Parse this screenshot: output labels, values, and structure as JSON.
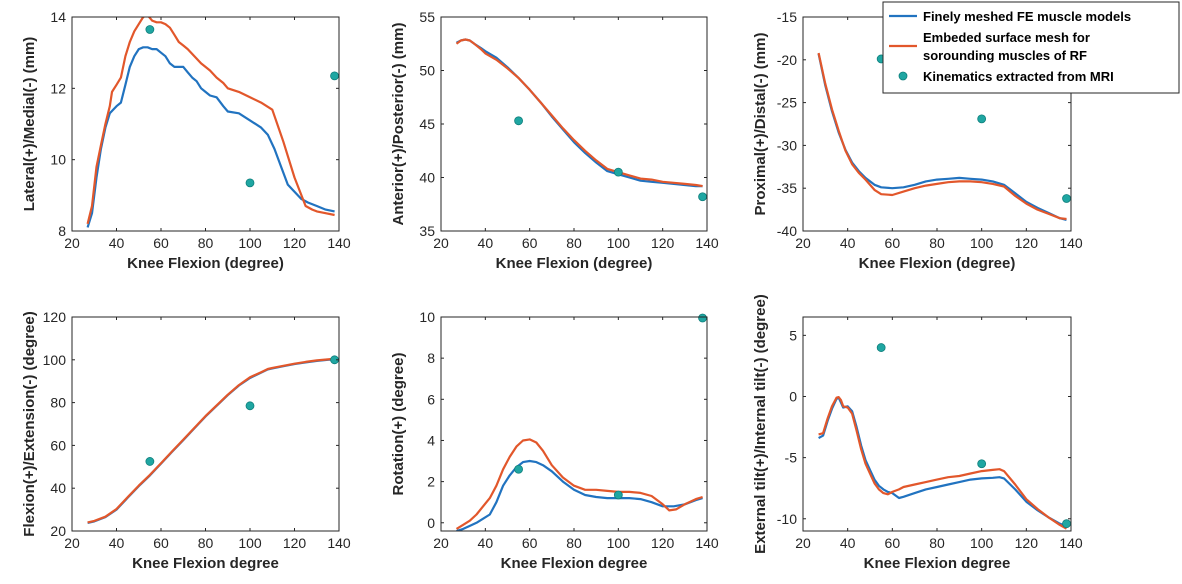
{
  "colors": {
    "fe": "#2173c0",
    "surf": "#e2572b",
    "mri": "#1fa6a2",
    "axis": "#262626"
  },
  "legend": {
    "entries": [
      {
        "key": "fe",
        "type": "line",
        "lines": [
          "Finely meshed FE muscle models"
        ]
      },
      {
        "key": "surf",
        "type": "line",
        "lines": [
          "Embeded surface mesh for",
          "sorounding muscles of RF"
        ]
      },
      {
        "key": "mri",
        "type": "marker",
        "lines": [
          "Kinematics extracted from MRI"
        ]
      }
    ]
  },
  "chart_data": [
    {
      "type": "line",
      "xlabel": "Knee Flexion (degree)",
      "ylabel": "Lateral(+)/Medial(-) (mm)",
      "xlim": [
        20,
        140
      ],
      "ylim": [
        8,
        14
      ],
      "xticks": [
        20,
        40,
        60,
        80,
        100,
        120,
        140
      ],
      "yticks": [
        8,
        10,
        12,
        14
      ],
      "series": [
        {
          "key": "fe",
          "name": "Finely meshed FE muscle models",
          "x": [
            27,
            29,
            31,
            33,
            35,
            37,
            40,
            42,
            44,
            46,
            48,
            50,
            52,
            54,
            56,
            58,
            60,
            62,
            64,
            66,
            68,
            70,
            72,
            74,
            76,
            78,
            80,
            82,
            85,
            88,
            90,
            95,
            100,
            105,
            108,
            111,
            114,
            117,
            120,
            123,
            126,
            130,
            134,
            138
          ],
          "y": [
            8.1,
            8.5,
            9.5,
            10.3,
            10.9,
            11.3,
            11.5,
            11.6,
            12.1,
            12.6,
            12.9,
            13.1,
            13.15,
            13.15,
            13.1,
            13.1,
            13.0,
            12.9,
            12.7,
            12.6,
            12.6,
            12.6,
            12.45,
            12.3,
            12.2,
            12.0,
            11.9,
            11.8,
            11.75,
            11.5,
            11.35,
            11.3,
            11.1,
            10.9,
            10.7,
            10.3,
            9.8,
            9.3,
            9.1,
            8.9,
            8.8,
            8.7,
            8.6,
            8.55
          ]
        },
        {
          "key": "surf",
          "name": "Embeded surface mesh for sorounding muscles of RF",
          "x": [
            27,
            29,
            31,
            33,
            35,
            37,
            38,
            40,
            42,
            44,
            46,
            48,
            50,
            52,
            54,
            56,
            58,
            60,
            62,
            64,
            66,
            68,
            70,
            72,
            75,
            78,
            80,
            82,
            85,
            88,
            90,
            95,
            100,
            105,
            110,
            115,
            120,
            125,
            128,
            130,
            134,
            138
          ],
          "y": [
            8.2,
            8.7,
            9.8,
            10.4,
            11.0,
            11.5,
            11.9,
            12.1,
            12.3,
            12.9,
            13.3,
            13.6,
            13.8,
            14.0,
            14.05,
            13.9,
            13.85,
            13.85,
            13.8,
            13.7,
            13.5,
            13.3,
            13.2,
            13.1,
            12.9,
            12.7,
            12.6,
            12.5,
            12.3,
            12.15,
            12.0,
            11.9,
            11.75,
            11.6,
            11.4,
            10.5,
            9.5,
            8.7,
            8.6,
            8.55,
            8.5,
            8.45
          ]
        }
      ],
      "points": {
        "key": "mri",
        "name": "Kinematics extracted from MRI",
        "x": [
          55,
          100,
          138
        ],
        "y": [
          13.65,
          9.35,
          12.35
        ]
      }
    },
    {
      "type": "line",
      "xlabel": "Knee Flexion (degree)",
      "ylabel": "Anterior(+)/Posterior(-) (mm)",
      "xlim": [
        20,
        140
      ],
      "ylim": [
        35,
        55
      ],
      "xticks": [
        20,
        40,
        60,
        80,
        100,
        120,
        140
      ],
      "yticks": [
        35,
        40,
        45,
        50,
        55
      ],
      "series": [
        {
          "key": "fe",
          "name": "Finely meshed FE muscle models",
          "x": [
            27,
            29,
            31,
            33,
            35,
            38,
            40,
            45,
            50,
            55,
            60,
            65,
            70,
            75,
            80,
            85,
            90,
            95,
            100,
            105,
            110,
            115,
            120,
            125,
            130,
            135,
            138
          ],
          "y": [
            52.6,
            52.8,
            52.9,
            52.8,
            52.5,
            52.1,
            51.8,
            51.2,
            50.3,
            49.3,
            48.2,
            47.0,
            45.7,
            44.5,
            43.3,
            42.3,
            41.4,
            40.6,
            40.3,
            40.0,
            39.7,
            39.6,
            39.5,
            39.4,
            39.3,
            39.2,
            39.2
          ]
        },
        {
          "key": "surf",
          "name": "Embeded surface mesh for sorounding muscles of RF",
          "x": [
            27,
            29,
            31,
            33,
            35,
            38,
            40,
            45,
            50,
            55,
            60,
            65,
            70,
            75,
            80,
            85,
            90,
            95,
            100,
            105,
            110,
            115,
            120,
            125,
            130,
            135,
            138
          ],
          "y": [
            52.5,
            52.8,
            52.9,
            52.8,
            52.5,
            52.0,
            51.6,
            51.0,
            50.2,
            49.3,
            48.2,
            47.0,
            45.8,
            44.6,
            43.5,
            42.5,
            41.6,
            40.8,
            40.5,
            40.2,
            39.9,
            39.8,
            39.6,
            39.5,
            39.4,
            39.3,
            39.2
          ]
        }
      ],
      "points": {
        "key": "mri",
        "name": "Kinematics extracted from MRI",
        "x": [
          55,
          100,
          138
        ],
        "y": [
          45.3,
          40.5,
          38.2
        ]
      }
    },
    {
      "type": "line",
      "xlabel": "Knee Flexion (degree)",
      "ylabel": "Proximal(+)/Distal(-) (mm)",
      "xlim": [
        20,
        140
      ],
      "ylim": [
        -40,
        -15
      ],
      "xticks": [
        20,
        40,
        60,
        80,
        100,
        120,
        140
      ],
      "yticks": [
        -40,
        -35,
        -30,
        -25,
        -20,
        -15
      ],
      "series": [
        {
          "key": "fe",
          "name": "Finely meshed FE muscle models",
          "x": [
            27,
            30,
            33,
            36,
            39,
            42,
            45,
            48,
            52,
            55,
            60,
            65,
            70,
            75,
            80,
            85,
            90,
            95,
            100,
            105,
            110,
            115,
            120,
            125,
            130,
            135,
            138
          ],
          "y": [
            -19.3,
            -23.0,
            -26.0,
            -28.5,
            -30.5,
            -32.0,
            -33.0,
            -33.8,
            -34.6,
            -34.9,
            -35.0,
            -34.9,
            -34.6,
            -34.2,
            -34.0,
            -33.9,
            -33.8,
            -33.9,
            -34.0,
            -34.2,
            -34.6,
            -35.6,
            -36.6,
            -37.3,
            -37.9,
            -38.5,
            -38.7
          ]
        },
        {
          "key": "surf",
          "name": "Embeded surface mesh for sorounding muscles of RF",
          "x": [
            27,
            30,
            33,
            36,
            39,
            42,
            45,
            48,
            52,
            55,
            60,
            65,
            70,
            75,
            80,
            85,
            90,
            95,
            100,
            105,
            110,
            115,
            120,
            125,
            130,
            135,
            138
          ],
          "y": [
            -19.2,
            -22.8,
            -25.8,
            -28.3,
            -30.6,
            -32.2,
            -33.2,
            -34.0,
            -35.2,
            -35.7,
            -35.8,
            -35.4,
            -35.0,
            -34.7,
            -34.5,
            -34.3,
            -34.2,
            -34.2,
            -34.3,
            -34.5,
            -34.8,
            -35.9,
            -36.8,
            -37.5,
            -38.0,
            -38.5,
            -38.6
          ]
        }
      ],
      "points": {
        "key": "mri",
        "name": "Kinematics extracted from MRI",
        "x": [
          55,
          100,
          138
        ],
        "y": [
          -19.9,
          -26.9,
          -36.2
        ]
      }
    },
    {
      "type": "line",
      "xlabel": "Knee Flexion degree",
      "ylabel": "Flexion(+)/Extension(-) (degree)",
      "xlim": [
        20,
        140
      ],
      "ylim": [
        20,
        120
      ],
      "xticks": [
        20,
        40,
        60,
        80,
        100,
        120,
        140
      ],
      "yticks": [
        20,
        40,
        60,
        80,
        100,
        120
      ],
      "series": [
        {
          "key": "fe",
          "name": "Finely meshed FE muscle models",
          "x": [
            27,
            30,
            35,
            40,
            45,
            50,
            55,
            60,
            65,
            70,
            75,
            80,
            85,
            90,
            95,
            100,
            105,
            108,
            110,
            115,
            120,
            125,
            130,
            135,
            138
          ],
          "y": [
            23.8,
            24.5,
            26.5,
            30.0,
            35.5,
            41.0,
            46.0,
            51.5,
            57.0,
            62.5,
            68.0,
            73.5,
            78.5,
            83.5,
            88.0,
            91.5,
            94.0,
            95.5,
            96.0,
            97.0,
            98.0,
            98.8,
            99.5,
            100.0,
            100.2
          ]
        },
        {
          "key": "surf",
          "name": "Embeded surface mesh for sorounding muscles of RF",
          "x": [
            27,
            30,
            35,
            40,
            45,
            50,
            55,
            60,
            65,
            70,
            75,
            80,
            85,
            90,
            95,
            100,
            105,
            108,
            110,
            115,
            120,
            125,
            130,
            135,
            138
          ],
          "y": [
            24.0,
            24.7,
            26.7,
            30.3,
            35.8,
            41.2,
            46.2,
            51.7,
            57.2,
            62.7,
            68.2,
            73.7,
            78.7,
            83.7,
            88.2,
            91.8,
            94.2,
            95.7,
            96.2,
            97.2,
            98.2,
            99.0,
            99.7,
            100.2,
            100.5
          ]
        }
      ],
      "points": {
        "key": "mri",
        "name": "Kinematics extracted from MRI",
        "x": [
          55,
          100,
          138
        ],
        "y": [
          52.5,
          78.5,
          100.0
        ]
      }
    },
    {
      "type": "line",
      "xlabel": "Knee Flexion degree",
      "ylabel": "Rotation(+) (degree)",
      "xlim": [
        20,
        140
      ],
      "ylim": [
        -0.4,
        10
      ],
      "xticks": [
        20,
        40,
        60,
        80,
        100,
        120,
        140
      ],
      "yticks": [
        0,
        2,
        4,
        6,
        8,
        10
      ],
      "series": [
        {
          "key": "fe",
          "name": "Finely meshed FE muscle models",
          "x": [
            27,
            30,
            33,
            36,
            39,
            42,
            45,
            48,
            51,
            54,
            57,
            60,
            63,
            66,
            70,
            75,
            80,
            85,
            90,
            95,
            100,
            105,
            110,
            115,
            120,
            125,
            130,
            135,
            138
          ],
          "y": [
            -0.4,
            -0.3,
            -0.15,
            0.0,
            0.2,
            0.4,
            1.0,
            1.8,
            2.3,
            2.7,
            2.95,
            3.0,
            2.95,
            2.8,
            2.5,
            2.0,
            1.6,
            1.35,
            1.25,
            1.2,
            1.2,
            1.2,
            1.15,
            1.0,
            0.8,
            0.8,
            0.9,
            1.1,
            1.2
          ]
        },
        {
          "key": "surf",
          "name": "Embeded surface mesh for sorounding muscles of RF",
          "x": [
            27,
            30,
            33,
            36,
            39,
            42,
            45,
            48,
            51,
            54,
            57,
            60,
            63,
            66,
            70,
            75,
            80,
            85,
            90,
            95,
            100,
            105,
            110,
            115,
            120,
            123,
            126,
            130,
            135,
            138
          ],
          "y": [
            -0.3,
            -0.1,
            0.1,
            0.4,
            0.8,
            1.2,
            1.8,
            2.6,
            3.2,
            3.7,
            4.0,
            4.05,
            3.9,
            3.5,
            2.8,
            2.2,
            1.8,
            1.6,
            1.6,
            1.55,
            1.5,
            1.5,
            1.45,
            1.3,
            0.9,
            0.6,
            0.65,
            0.9,
            1.15,
            1.25
          ]
        }
      ],
      "points": {
        "key": "mri",
        "name": "Kinematics extracted from MRI",
        "x": [
          55,
          100,
          138
        ],
        "y": [
          2.6,
          1.35,
          9.95
        ]
      }
    },
    {
      "type": "line",
      "xlabel": "Knee Flexion degree",
      "ylabel": "External tilt(+)/Internal tilt(-) (degree)",
      "xlim": [
        20,
        140
      ],
      "ylim": [
        -11,
        6.5
      ],
      "xticks": [
        20,
        40,
        60,
        80,
        100,
        120,
        140
      ],
      "yticks": [
        -10,
        -5,
        0,
        5
      ],
      "series": [
        {
          "key": "fe",
          "name": "Finely meshed FE muscle models",
          "x": [
            27,
            29,
            31,
            33,
            35,
            36,
            37,
            38,
            40,
            42,
            44,
            46,
            48,
            50,
            52,
            54,
            56,
            58,
            60,
            63,
            65,
            70,
            75,
            80,
            85,
            90,
            95,
            100,
            105,
            108,
            110,
            115,
            120,
            125,
            130,
            135,
            138
          ],
          "y": [
            -3.4,
            -3.2,
            -2.0,
            -1.0,
            -0.2,
            -0.1,
            -0.5,
            -0.9,
            -0.8,
            -1.2,
            -2.5,
            -4.0,
            -5.2,
            -6.0,
            -6.8,
            -7.3,
            -7.6,
            -7.8,
            -7.9,
            -8.3,
            -8.2,
            -7.9,
            -7.6,
            -7.4,
            -7.2,
            -7.0,
            -6.8,
            -6.7,
            -6.65,
            -6.6,
            -6.7,
            -7.6,
            -8.6,
            -9.3,
            -9.9,
            -10.4,
            -10.6
          ]
        },
        {
          "key": "surf",
          "name": "Embeded surface mesh for sorounding muscles of RF",
          "x": [
            27,
            29,
            31,
            33,
            35,
            36,
            37,
            38,
            40,
            42,
            44,
            46,
            48,
            50,
            52,
            54,
            56,
            58,
            60,
            63,
            65,
            70,
            75,
            80,
            85,
            90,
            95,
            100,
            105,
            108,
            110,
            115,
            120,
            125,
            130,
            135,
            138
          ],
          "y": [
            -3.1,
            -3.0,
            -1.8,
            -0.8,
            -0.1,
            -0.05,
            -0.3,
            -0.8,
            -0.9,
            -1.4,
            -2.8,
            -4.3,
            -5.5,
            -6.3,
            -7.1,
            -7.6,
            -7.9,
            -8.0,
            -7.8,
            -7.6,
            -7.4,
            -7.2,
            -7.0,
            -6.8,
            -6.6,
            -6.5,
            -6.3,
            -6.1,
            -6.0,
            -5.95,
            -6.1,
            -7.2,
            -8.4,
            -9.2,
            -9.9,
            -10.5,
            -10.8
          ]
        }
      ],
      "points": {
        "key": "mri",
        "name": "Kinematics extracted from MRI",
        "x": [
          55,
          100,
          138
        ],
        "y": [
          4.0,
          -5.5,
          -10.4
        ]
      }
    }
  ]
}
